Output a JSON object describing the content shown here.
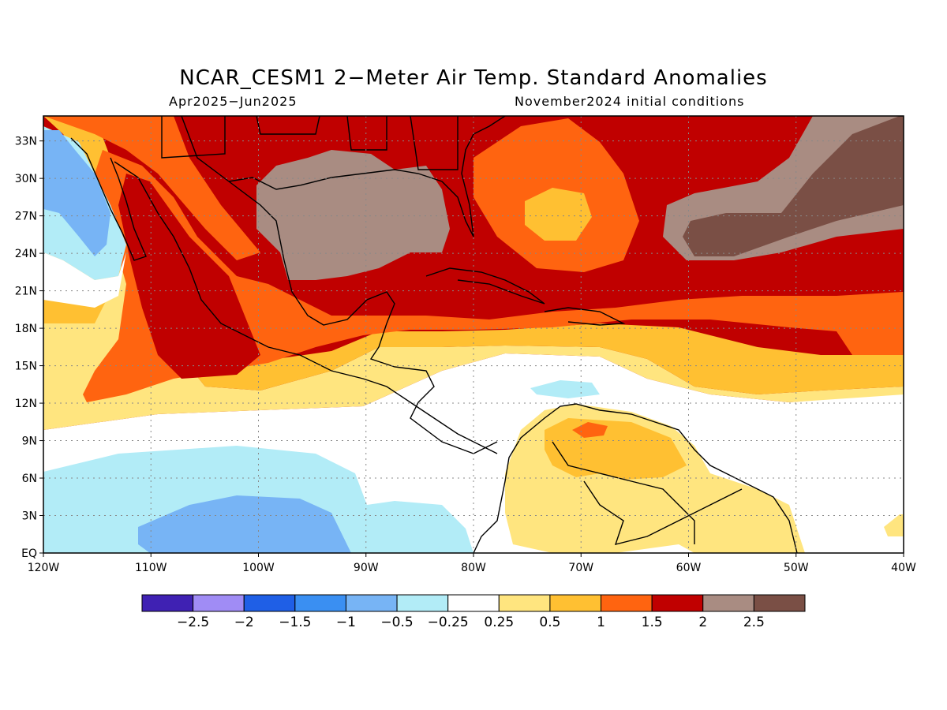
{
  "map": {
    "title": "NCAR_CESM1 2−Meter Air Temp. Standard Anomalies",
    "period": "Apr2025−Jun2025",
    "init": "November2024 initial conditions",
    "lat_labels": [
      "EQ",
      "3N",
      "6N",
      "9N",
      "12N",
      "15N",
      "18N",
      "21N",
      "24N",
      "27N",
      "30N",
      "33N"
    ],
    "lon_labels": [
      "120W",
      "110W",
      "100W",
      "90W",
      "80W",
      "70W",
      "60W",
      "50W",
      "40W"
    ],
    "colorbar": {
      "colors": [
        "#3f21b3",
        "#a08cf5",
        "#1f5fe6",
        "#3a8ff2",
        "#77b4f5",
        "#b2ecf7",
        "#ffffff",
        "#ffe57f",
        "#ffc032",
        "#ff6410",
        "#c00000",
        "#a98c82",
        "#7a4f45"
      ],
      "labels": [
        "−2.5",
        "−2",
        "−1.5",
        "−1",
        "−0.5",
        "−0.25",
        "0.25",
        "0.5",
        "1",
        "1.5",
        "2",
        "2.5"
      ]
    },
    "colors": {
      "c_lightblue": "#b2ecf7",
      "c_blue": "#77b4f5",
      "c_white": "#ffffff",
      "c_yellow": "#ffe57f",
      "c_gold": "#ffc032",
      "c_orange": "#ff6410",
      "c_red": "#c00000",
      "c_taupe": "#a98c82",
      "c_brown": "#7a4f45"
    }
  }
}
